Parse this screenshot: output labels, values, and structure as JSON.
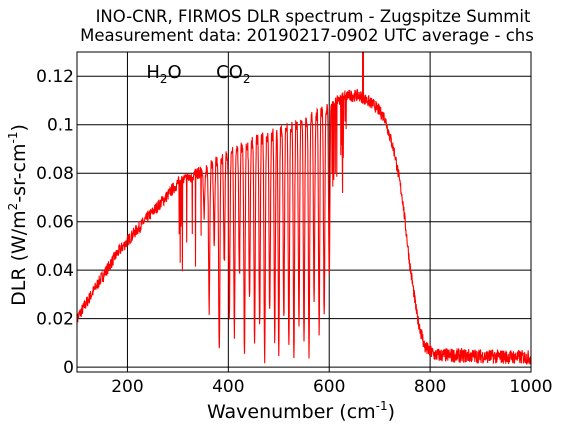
{
  "chart_data": {
    "type": "line",
    "title": "INO-CNR, FIRMOS DLR spectrum - Zugspitze Summit",
    "subtitle": "Measurement data: 20190217-0902 UTC average - chs",
    "xlabel": {
      "text": "Wavenumber (cm",
      "sup": "-1",
      "tail": ")"
    },
    "ylabel": {
      "text": "DLR (W/m",
      "sup1": "2",
      "mid": "-sr-cm",
      "sup2": "-1",
      "tail": ")"
    },
    "xlim": [
      100,
      1000
    ],
    "ylim": [
      -0.002,
      0.13
    ],
    "x_ticks": [
      200,
      400,
      600,
      800,
      1000
    ],
    "y_ticks": [
      0,
      0.02,
      0.04,
      0.06,
      0.08,
      0.1,
      0.12
    ],
    "x_tick_labels": [
      "200",
      "400",
      "600",
      "800",
      "1000"
    ],
    "y_tick_labels": [
      "0",
      "0.02",
      "0.04",
      "0.06",
      "0.08",
      "0.1",
      "0.12"
    ],
    "grid": true,
    "line_color": "#ff0000",
    "annotations": [
      {
        "label": "H",
        "sub": "2",
        "tail": "O",
        "x": 545
      },
      {
        "label": "CO",
        "sub": "2",
        "tail": "",
        "x": 820
      }
    ],
    "series": [
      {
        "envelope": [
          [
            100,
            0.02
          ],
          [
            140,
            0.034
          ],
          [
            180,
            0.047
          ],
          [
            220,
            0.057
          ],
          [
            250,
            0.064
          ],
          [
            280,
            0.071
          ],
          [
            300,
            0.076
          ],
          [
            330,
            0.079
          ],
          [
            360,
            0.082
          ],
          [
            400,
            0.088
          ],
          [
            450,
            0.093
          ],
          [
            500,
            0.097
          ],
          [
            550,
            0.101
          ],
          [
            600,
            0.107
          ],
          [
            630,
            0.112
          ],
          [
            660,
            0.112
          ],
          [
            690,
            0.108
          ],
          [
            710,
            0.103
          ],
          [
            730,
            0.088
          ],
          [
            745,
            0.07
          ],
          [
            760,
            0.042
          ],
          [
            775,
            0.02
          ],
          [
            790,
            0.008
          ],
          [
            810,
            0.005
          ],
          [
            1000,
            0.004
          ]
        ],
        "absorption_lines": [
          [
            352,
            0.061
          ],
          [
            362,
            0.024
          ],
          [
            372,
            0.051
          ],
          [
            382,
            0.007
          ],
          [
            392,
            0.043
          ],
          [
            402,
            0.021
          ],
          [
            412,
            0.013
          ],
          [
            422,
            0.037
          ],
          [
            432,
            0.006
          ],
          [
            442,
            0.028
          ],
          [
            452,
            0.011
          ],
          [
            462,
            0.018
          ],
          [
            472,
            0.004
          ],
          [
            482,
            0.022
          ],
          [
            492,
            0.012
          ],
          [
            500,
            0.007
          ],
          [
            510,
            0.019
          ],
          [
            520,
            0.009
          ],
          [
            530,
            0.004
          ],
          [
            540,
            0.016
          ],
          [
            550,
            0.012
          ],
          [
            560,
            0.005
          ],
          [
            570,
            0.026
          ],
          [
            580,
            0.014
          ],
          [
            590,
            0.022
          ],
          [
            600,
            0.036
          ]
        ],
        "spike": [
          667,
          0.13
        ]
      }
    ]
  }
}
